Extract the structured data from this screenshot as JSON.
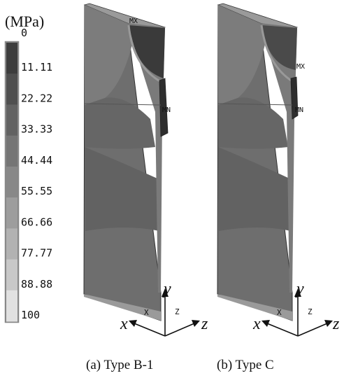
{
  "legend": {
    "unit": "(MPa)",
    "ticks": [
      "0",
      "11.11",
      "22.22",
      "33.33",
      "44.44",
      "55.55",
      "66.66",
      "77.77",
      "88.88",
      "100"
    ],
    "colors": [
      "#3d3d3d",
      "#4f4f4f",
      "#626262",
      "#757575",
      "#888888",
      "#9d9d9d",
      "#b2b2b2",
      "#c8c8c8",
      "#e1e1e1"
    ]
  },
  "panels": [
    {
      "caption": "(a) Type B-1",
      "max_tag": "MX",
      "min_tag": "MN"
    },
    {
      "caption": "(b) Type C",
      "max_tag": "MX",
      "min_tag": "MN"
    }
  ],
  "axes": {
    "x": "x",
    "y": "y",
    "z": "z",
    "X": "X",
    "Z": "Z"
  }
}
